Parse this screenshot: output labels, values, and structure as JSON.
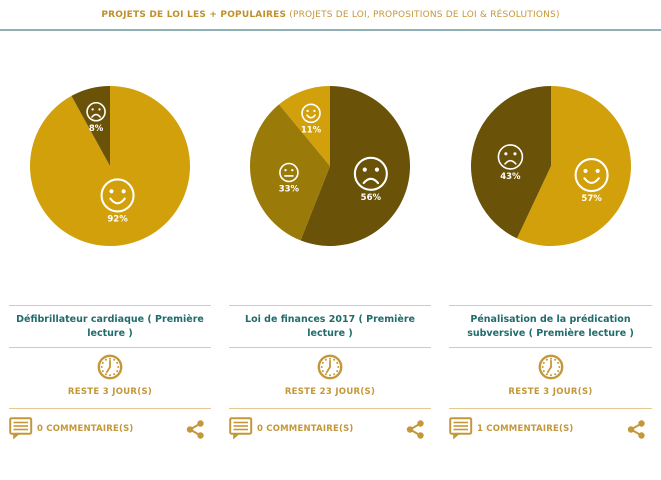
{
  "header": {
    "title_bold": "PROJETS DE LOI LES + POPULAIRES",
    "title_note": "(PROJETS DE LOI, PROPOSITIONS DE LOI & RÉSOLUTIONS)"
  },
  "colors": {
    "happy": "#d2a00b",
    "neutral": "#9a7a08",
    "sad": "#6a5208",
    "accent_gold": "#c49738",
    "title_teal": "#216b6b",
    "divider_teal": "#8fb0b4",
    "divider_gold": "#e4c88f",
    "face_stroke": "#ffffff"
  },
  "cards": [
    {
      "title": "Défibrillateur cardiaque ( Première lecture )",
      "remaining": "RESTE 3 JOUR(S)",
      "comments": "0 COMMENTAIRE(S)"
    },
    {
      "title": "Loi de finances 2017 ( Première lecture )",
      "remaining": "RESTE 23 JOUR(S)",
      "comments": "0 COMMENTAIRE(S)"
    },
    {
      "title": "Pénalisation de la prédication subversive ( Première lecture )",
      "remaining": "RESTE 3 JOUR(S)",
      "comments": "1 COMMENTAIRE(S)"
    }
  ],
  "chart_data": [
    {
      "type": "pie",
      "title": "Défibrillateur cardiaque ( Première lecture )",
      "unit": "%",
      "start_angle_deg": 0,
      "direction": "clockwise",
      "legend_position": "none",
      "slices": [
        {
          "sentiment": "happy",
          "value_pct": 92
        },
        {
          "sentiment": "sad",
          "value_pct": 8
        }
      ]
    },
    {
      "type": "pie",
      "title": "Loi de finances 2017 ( Première lecture )",
      "unit": "%",
      "start_angle_deg": 0,
      "direction": "clockwise",
      "legend_position": "none",
      "slices": [
        {
          "sentiment": "sad",
          "value_pct": 56
        },
        {
          "sentiment": "neutral",
          "value_pct": 33
        },
        {
          "sentiment": "happy",
          "value_pct": 11
        }
      ]
    },
    {
      "type": "pie",
      "title": "Pénalisation de la prédication subversive ( Première lecture )",
      "unit": "%",
      "start_angle_deg": 0,
      "direction": "clockwise",
      "legend_position": "none",
      "slices": [
        {
          "sentiment": "happy",
          "value_pct": 57
        },
        {
          "sentiment": "sad",
          "value_pct": 43
        }
      ]
    }
  ]
}
